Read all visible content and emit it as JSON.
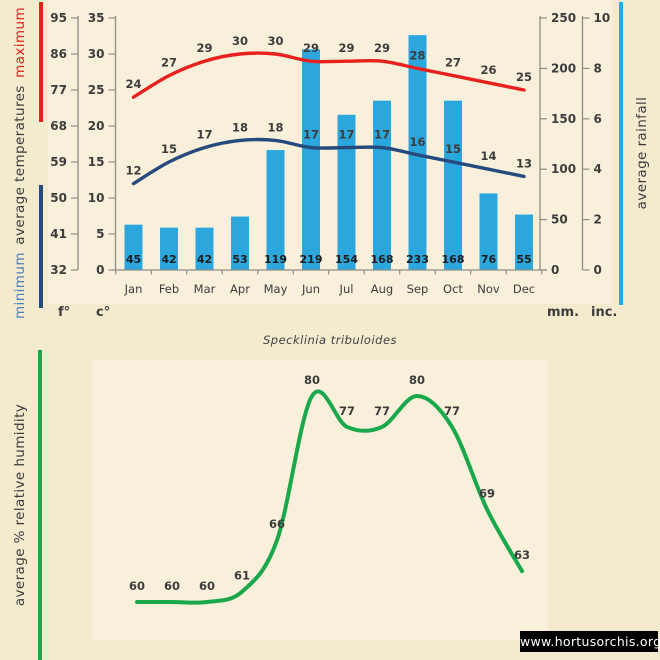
{
  "page": {
    "background": "#f4ebcf",
    "plot_background": "#f8f0da"
  },
  "footer": {
    "text": "www.hortusorchis.org"
  },
  "chart_data": [
    {
      "type": "bar+line",
      "categories": [
        "Jan",
        "Feb",
        "Mar",
        "Apr",
        "May",
        "Jun",
        "Jul",
        "Aug",
        "Sep",
        "Oct",
        "Nov",
        "Dec"
      ],
      "series": [
        {
          "name": "maximum average temperature",
          "type": "line",
          "color": "#e8201e",
          "values": [
            24,
            27,
            29,
            30,
            30,
            29,
            29,
            29,
            28,
            27,
            26,
            25
          ]
        },
        {
          "name": "minimum average temperature",
          "type": "line",
          "color": "#26497e",
          "values": [
            12,
            15,
            17,
            18,
            18,
            17,
            17,
            17,
            16,
            15,
            14,
            13
          ]
        },
        {
          "name": "average rainfall",
          "type": "bar",
          "color": "#2ba7dd",
          "values": [
            45,
            42,
            42,
            53,
            119,
            219,
            154,
            168,
            233,
            168,
            76,
            55
          ]
        }
      ],
      "axes": {
        "left_f": {
          "label": "f°",
          "ticks": [
            95,
            86,
            77,
            68,
            59,
            50,
            41,
            32
          ]
        },
        "left_c": {
          "label": "c°",
          "ticks": [
            35,
            30,
            25,
            20,
            15,
            10,
            5,
            0
          ],
          "range": [
            0,
            35
          ]
        },
        "right_mm": {
          "label": "mm.",
          "ticks": [
            250,
            200,
            150,
            100,
            50,
            0
          ],
          "range": [
            0,
            250
          ]
        },
        "right_inc": {
          "label": "inc.",
          "ticks": [
            10,
            8,
            6,
            4,
            2,
            0
          ],
          "range": [
            0,
            10
          ]
        }
      },
      "side_labels": {
        "minimum": "minimum",
        "average": "average  temperatures",
        "maximum": "maximum",
        "rainfall": "average rainfall"
      },
      "legend_colors": {
        "minimum_text": "#4d7ebf",
        "maximum_text": "#e0201c"
      },
      "grid": false,
      "legend_position": "left-and-right vertical color bars"
    },
    {
      "type": "line",
      "title": "Specklinia tribuloides",
      "ylabel": "average %  relative humidity",
      "color": "#1ba84d",
      "categories": [
        "Jan",
        "Feb",
        "Mar",
        "Apr",
        "May",
        "Jun",
        "Jul",
        "Aug",
        "Sep",
        "Oct",
        "Nov",
        "Dec"
      ],
      "values": [
        60,
        60,
        60,
        61,
        66,
        80,
        77,
        77,
        80,
        77,
        69,
        63
      ],
      "ylim": [
        55,
        85
      ],
      "grid": false
    }
  ]
}
